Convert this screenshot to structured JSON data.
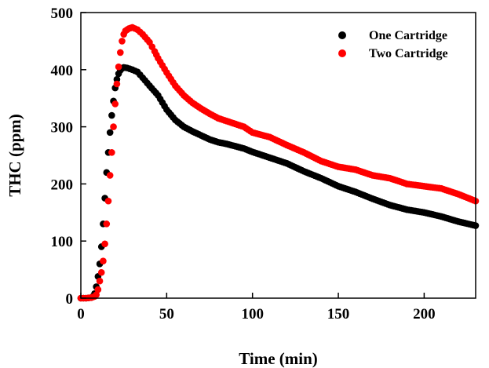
{
  "chart_data": {
    "type": "scatter",
    "title": "",
    "xlabel": "Time (min)",
    "ylabel": "THC (ppm)",
    "xlim": [
      0,
      230
    ],
    "ylim": [
      0,
      500
    ],
    "xticks": [
      "0",
      "50",
      "100",
      "150",
      "200"
    ],
    "yticks": [
      "0",
      "100",
      "200",
      "300",
      "400",
      "500"
    ],
    "grid": false,
    "legend_position": "top-right",
    "series": [
      {
        "name": "One Cartridge",
        "color": "#000000",
        "points": [
          [
            0,
            0
          ],
          [
            3,
            0
          ],
          [
            6,
            1
          ],
          [
            7,
            3
          ],
          [
            8,
            8
          ],
          [
            9,
            20
          ],
          [
            10,
            38
          ],
          [
            11,
            60
          ],
          [
            12,
            90
          ],
          [
            13,
            130
          ],
          [
            14,
            175
          ],
          [
            15,
            220
          ],
          [
            16,
            255
          ],
          [
            17,
            290
          ],
          [
            18,
            320
          ],
          [
            19,
            345
          ],
          [
            20,
            368
          ],
          [
            21,
            383
          ],
          [
            22,
            393
          ],
          [
            23,
            399
          ],
          [
            24,
            402
          ],
          [
            25,
            404
          ],
          [
            27,
            403
          ],
          [
            30,
            400
          ],
          [
            33,
            396
          ],
          [
            36,
            386
          ],
          [
            40,
            372
          ],
          [
            45,
            355
          ],
          [
            50,
            330
          ],
          [
            55,
            312
          ],
          [
            60,
            300
          ],
          [
            65,
            292
          ],
          [
            70,
            285
          ],
          [
            75,
            278
          ],
          [
            80,
            273
          ],
          [
            85,
            270
          ],
          [
            90,
            266
          ],
          [
            95,
            262
          ],
          [
            100,
            256
          ],
          [
            110,
            246
          ],
          [
            120,
            236
          ],
          [
            130,
            222
          ],
          [
            140,
            210
          ],
          [
            150,
            196
          ],
          [
            160,
            186
          ],
          [
            170,
            174
          ],
          [
            180,
            163
          ],
          [
            190,
            155
          ],
          [
            200,
            150
          ],
          [
            210,
            143
          ],
          [
            220,
            134
          ],
          [
            230,
            127
          ]
        ]
      },
      {
        "name": "Two Cartridge",
        "color": "#ff0000",
        "points": [
          [
            0,
            0
          ],
          [
            3,
            0
          ],
          [
            6,
            1
          ],
          [
            8,
            3
          ],
          [
            9,
            6
          ],
          [
            10,
            15
          ],
          [
            11,
            30
          ],
          [
            12,
            45
          ],
          [
            13,
            65
          ],
          [
            14,
            95
          ],
          [
            15,
            130
          ],
          [
            16,
            170
          ],
          [
            17,
            215
          ],
          [
            18,
            255
          ],
          [
            19,
            300
          ],
          [
            20,
            340
          ],
          [
            21,
            375
          ],
          [
            22,
            405
          ],
          [
            23,
            430
          ],
          [
            24,
            450
          ],
          [
            25,
            462
          ],
          [
            26,
            468
          ],
          [
            28,
            472
          ],
          [
            30,
            474
          ],
          [
            33,
            470
          ],
          [
            36,
            462
          ],
          [
            40,
            448
          ],
          [
            43,
            432
          ],
          [
            45,
            420
          ],
          [
            50,
            395
          ],
          [
            55,
            372
          ],
          [
            60,
            355
          ],
          [
            65,
            342
          ],
          [
            70,
            332
          ],
          [
            75,
            323
          ],
          [
            80,
            315
          ],
          [
            85,
            310
          ],
          [
            90,
            305
          ],
          [
            95,
            300
          ],
          [
            100,
            290
          ],
          [
            110,
            282
          ],
          [
            120,
            268
          ],
          [
            130,
            255
          ],
          [
            140,
            240
          ],
          [
            150,
            230
          ],
          [
            160,
            225
          ],
          [
            170,
            215
          ],
          [
            180,
            210
          ],
          [
            190,
            200
          ],
          [
            200,
            196
          ],
          [
            210,
            192
          ],
          [
            220,
            182
          ],
          [
            230,
            170
          ]
        ]
      }
    ]
  }
}
